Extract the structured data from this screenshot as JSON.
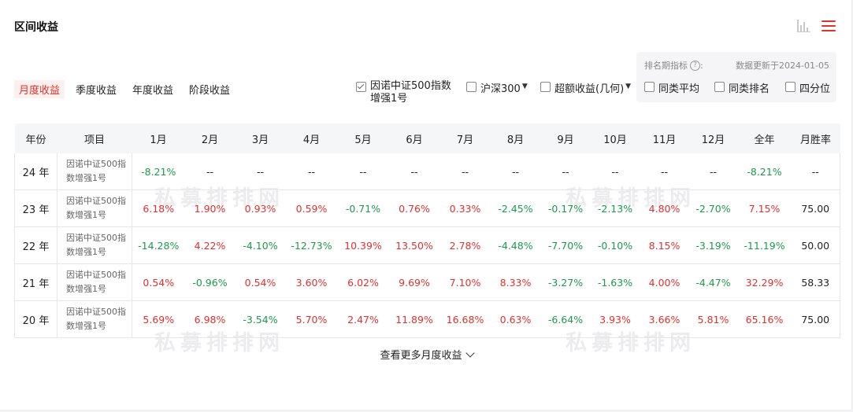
{
  "header": {
    "title": "区间收益",
    "icons": [
      "bar-chart-icon",
      "menu-icon"
    ]
  },
  "tabs": [
    {
      "label": "月度收益",
      "active": true
    },
    {
      "label": "季度收益",
      "active": false
    },
    {
      "label": "年度收益",
      "active": false
    },
    {
      "label": "阶段收益",
      "active": false
    }
  ],
  "compare": {
    "fund": {
      "label": "因诺中证500指数",
      "label2": "增强1号",
      "checked": true
    },
    "hs300": {
      "label": "沪深300",
      "checked": false
    },
    "excess": {
      "label": "超额收益(几何)",
      "checked": false
    }
  },
  "rank": {
    "label": "排名期指标",
    "colon": ":",
    "update": "数据更新于2024-01-05",
    "peer_avg": "同类平均",
    "peer_rank": "同类排名",
    "quartile": "四分位"
  },
  "table": {
    "headers": [
      "年份",
      "项目",
      "1月",
      "2月",
      "3月",
      "4月",
      "5月",
      "6月",
      "7月",
      "8月",
      "9月",
      "10月",
      "11月",
      "12月",
      "全年",
      "月胜率"
    ],
    "rows": [
      {
        "year": "24 年",
        "item1": "因诺中证500指",
        "item2": "数增强1号",
        "values": [
          "-8.21%",
          "--",
          "--",
          "--",
          "--",
          "--",
          "--",
          "--",
          "--",
          "--",
          "--",
          "--",
          "-8.21%"
        ],
        "win": "--"
      },
      {
        "year": "23 年",
        "item1": "因诺中证500指",
        "item2": "数增强1号",
        "values": [
          "6.18%",
          "1.90%",
          "0.93%",
          "0.59%",
          "-0.71%",
          "0.76%",
          "0.33%",
          "-2.45%",
          "-0.17%",
          "-2.13%",
          "4.80%",
          "-2.70%",
          "7.15%"
        ],
        "win": "75.00"
      },
      {
        "year": "22 年",
        "item1": "因诺中证500指",
        "item2": "数增强1号",
        "values": [
          "-14.28%",
          "4.22%",
          "-4.10%",
          "-12.73%",
          "10.39%",
          "13.50%",
          "2.78%",
          "-4.48%",
          "-7.70%",
          "-0.10%",
          "8.15%",
          "-3.19%",
          "-11.19%"
        ],
        "win": "50.00"
      },
      {
        "year": "21 年",
        "item1": "因诺中证500指",
        "item2": "数增强1号",
        "values": [
          "0.54%",
          "-0.96%",
          "0.54%",
          "3.60%",
          "6.02%",
          "9.69%",
          "7.10%",
          "8.33%",
          "-3.27%",
          "-1.63%",
          "4.00%",
          "-4.47%",
          "32.29%"
        ],
        "win": "58.33"
      },
      {
        "year": "20 年",
        "item1": "因诺中证500指",
        "item2": "数增强1号",
        "values": [
          "5.69%",
          "6.98%",
          "-3.54%",
          "5.70%",
          "2.47%",
          "11.89%",
          "16.68%",
          "0.63%",
          "-6.64%",
          "3.93%",
          "3.66%",
          "5.81%",
          "65.16%"
        ],
        "win": "75.00"
      }
    ]
  },
  "colors": {
    "positive": "#e1312d",
    "negative": "#1c9a4b",
    "accent": "#e1312d"
  },
  "watermark": "私募排排网",
  "more_link": "查看更多月度收益"
}
